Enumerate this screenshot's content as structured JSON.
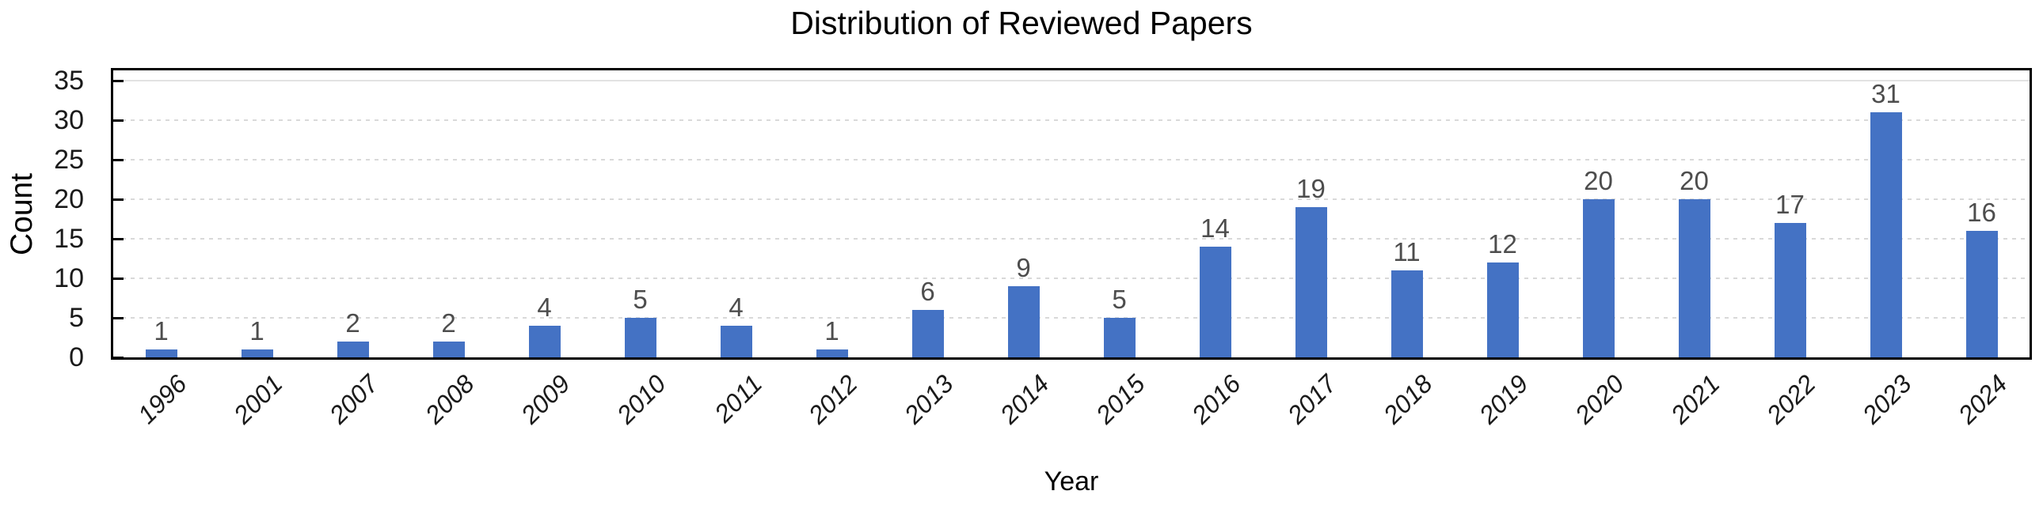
{
  "chart": {
    "title": "Distribution of Reviewed Papers",
    "xlabel": "Year",
    "ylabel": "Count"
  },
  "chart_data": {
    "type": "bar",
    "title": "Distribution of Reviewed Papers",
    "xlabel": "Year",
    "ylabel": "Count",
    "categories": [
      "1996",
      "2001",
      "2007",
      "2008",
      "2009",
      "2010",
      "2011",
      "2012",
      "2013",
      "2014",
      "2015",
      "2016",
      "2017",
      "2018",
      "2019",
      "2020",
      "2021",
      "2022",
      "2023",
      "2024"
    ],
    "values": [
      1,
      1,
      2,
      2,
      4,
      5,
      4,
      1,
      6,
      9,
      5,
      14,
      19,
      11,
      12,
      20,
      20,
      17,
      31,
      16
    ],
    "yticks": [
      0,
      5,
      10,
      15,
      20,
      25,
      30,
      35
    ],
    "ylim": [
      0,
      36.5
    ],
    "grid": true,
    "legend_position": "none",
    "data_labels": true,
    "colors": {
      "bar": "#4472C4",
      "gridline": "#D9D9D9",
      "gridline_top": "#E2E2E2",
      "data_label": "#4D4D4D",
      "axis_text": "#1A1A1A",
      "title_text": "#000000",
      "plot_border": "#000000",
      "background": "#FFFFFF"
    }
  }
}
